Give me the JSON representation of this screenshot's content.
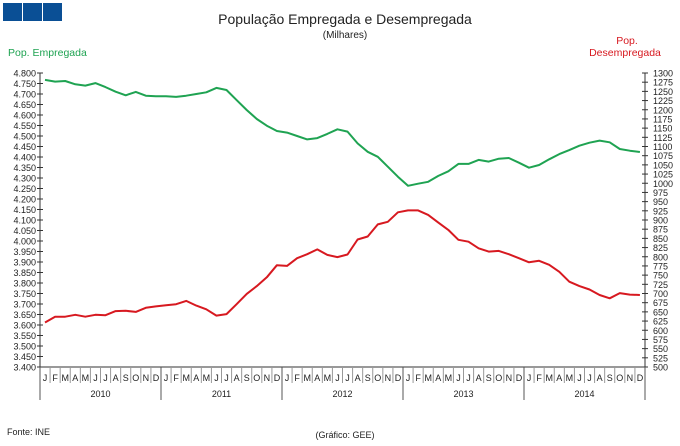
{
  "logo": {
    "color": "#0a4f95",
    "squares": 3
  },
  "chart_data": {
    "type": "line",
    "title": "População Empregada e Desempregada",
    "subtitle": "(Milhares)",
    "source": "Fonte: INE",
    "credit": "(Gráfico: GEE)",
    "months": [
      "J",
      "F",
      "M",
      "A",
      "M",
      "J",
      "J",
      "A",
      "S",
      "O",
      "N",
      "D"
    ],
    "years": [
      "2010",
      "2011",
      "2012",
      "2013",
      "2014"
    ],
    "left_axis": {
      "label": "Pop. Empregada",
      "min": 3400,
      "max": 4800,
      "step": 50,
      "tick_labels": [
        "4.800",
        "4.750",
        "4.700",
        "4.650",
        "4.600",
        "4.550",
        "4.500",
        "4.450",
        "4.400",
        "4.350",
        "4.300",
        "4.250",
        "4.200",
        "4.150",
        "4.100",
        "4.050",
        "4.000",
        "3.950",
        "3.900",
        "3.850",
        "3.800",
        "3.750",
        "3.700",
        "3.650",
        "3.600",
        "3.550",
        "3.500",
        "3.450",
        "3.400"
      ]
    },
    "right_axis": {
      "label_line1": "Pop.",
      "label_line2": "Desempregada",
      "min": 500,
      "max": 1300,
      "step": 25,
      "tick_labels": [
        "1300",
        "1275",
        "1250",
        "1225",
        "1200",
        "1175",
        "1150",
        "1125",
        "1100",
        "1075",
        "1050",
        "1025",
        "1000",
        "975",
        "950",
        "925",
        "900",
        "875",
        "850",
        "825",
        "800",
        "775",
        "750",
        "725",
        "700",
        "675",
        "650",
        "625",
        "600",
        "575",
        "550",
        "525",
        "500"
      ]
    },
    "grid": false,
    "series": [
      {
        "name": "Pop. Empregada",
        "axis": "left",
        "color": "#1fa352",
        "values": [
          4767,
          4759,
          4762,
          4746,
          4740,
          4752,
          4733,
          4711,
          4694,
          4710,
          4692,
          4689,
          4689,
          4686,
          4692,
          4700,
          4708,
          4729,
          4719,
          4671,
          4624,
          4581,
          4549,
          4524,
          4516,
          4500,
          4484,
          4490,
          4510,
          4532,
          4521,
          4465,
          4425,
          4401,
          4354,
          4306,
          4263,
          4273,
          4282,
          4310,
          4332,
          4367,
          4367,
          4386,
          4378,
          4392,
          4395,
          4373,
          4349,
          4362,
          4389,
          4414,
          4433,
          4454,
          4468,
          4478,
          4470,
          4438,
          4430,
          4424
        ]
      },
      {
        "name": "Pop. Desempregada",
        "axis": "right",
        "color": "#d71920",
        "values": [
          621,
          637,
          637,
          642,
          637,
          642,
          641,
          652,
          653,
          650,
          661,
          665,
          668,
          671,
          680,
          667,
          657,
          640,
          644,
          671,
          699,
          720,
          744,
          777,
          775,
          796,
          807,
          820,
          805,
          799,
          806,
          847,
          855,
          888,
          895,
          921,
          926,
          926,
          914,
          893,
          873,
          846,
          841,
          823,
          814,
          816,
          807,
          796,
          785,
          789,
          778,
          759,
          732,
          720,
          711,
          696,
          687,
          701,
          697,
          696
        ]
      }
    ]
  }
}
